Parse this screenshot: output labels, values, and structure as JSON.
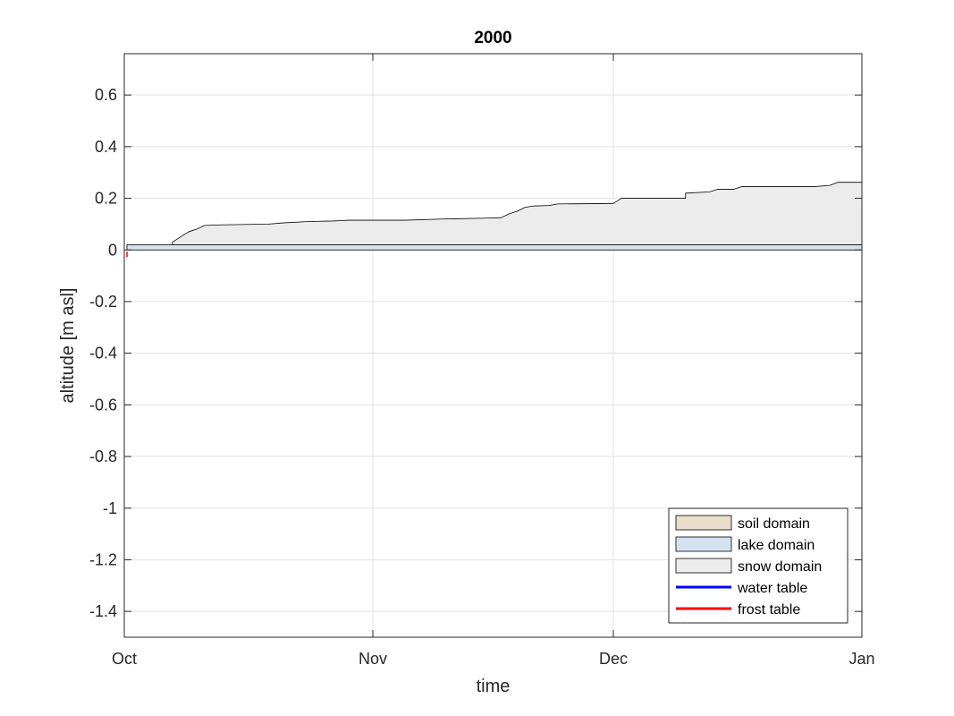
{
  "chart_data": {
    "type": "area",
    "title": "2000",
    "xlabel": "time",
    "ylabel": "altitude [m asl]",
    "x_start": "2000-10-01",
    "x_end": "2001-01-01",
    "xticks": [
      {
        "label": "Oct",
        "date": "2000-10-01"
      },
      {
        "label": "Nov",
        "date": "2000-11-01"
      },
      {
        "label": "Dec",
        "date": "2000-12-01"
      },
      {
        "label": "Jan",
        "date": "2001-01-01"
      }
    ],
    "ylim": [
      -1.5,
      0.76
    ],
    "yticks": [
      0.6,
      0.4,
      0.2,
      0,
      -0.2,
      -0.4,
      -0.6,
      -0.8,
      -1,
      -1.2,
      -1.4
    ],
    "ytick_labels": [
      "0.6",
      "0.4",
      "0.2",
      "0",
      "-0.2",
      "-0.4",
      "-0.6",
      "-0.8",
      "-1",
      "-1.2",
      "-1.4"
    ],
    "grid": true,
    "legend_position": "bottom-right",
    "lake_surface": {
      "y_bottom": 0,
      "y_top": 0.02
    },
    "snow_top": [
      {
        "x": "2000-10-07",
        "y": 0.02
      },
      {
        "x": "2000-10-07",
        "y": 0.03
      },
      {
        "x": "2000-10-08",
        "y": 0.05
      },
      {
        "x": "2000-10-09",
        "y": 0.07
      },
      {
        "x": "2000-10-10",
        "y": 0.08
      },
      {
        "x": "2000-10-11",
        "y": 0.095
      },
      {
        "x": "2000-10-13",
        "y": 0.097
      },
      {
        "x": "2000-10-19",
        "y": 0.1
      },
      {
        "x": "2000-10-21",
        "y": 0.105
      },
      {
        "x": "2000-10-24",
        "y": 0.11
      },
      {
        "x": "2000-10-27",
        "y": 0.112
      },
      {
        "x": "2000-10-29",
        "y": 0.115
      },
      {
        "x": "2000-11-05",
        "y": 0.115
      },
      {
        "x": "2000-11-10",
        "y": 0.12
      },
      {
        "x": "2000-11-15",
        "y": 0.123
      },
      {
        "x": "2000-11-17",
        "y": 0.125
      },
      {
        "x": "2000-11-18",
        "y": 0.14
      },
      {
        "x": "2000-11-19",
        "y": 0.15
      },
      {
        "x": "2000-11-20",
        "y": 0.165
      },
      {
        "x": "2000-11-21",
        "y": 0.17
      },
      {
        "x": "2000-11-23",
        "y": 0.172
      },
      {
        "x": "2000-11-24",
        "y": 0.178
      },
      {
        "x": "2000-12-01",
        "y": 0.18
      },
      {
        "x": "2000-12-02",
        "y": 0.2
      },
      {
        "x": "2000-12-10",
        "y": 0.2
      },
      {
        "x": "2000-12-10",
        "y": 0.22
      },
      {
        "x": "2000-12-13",
        "y": 0.225
      },
      {
        "x": "2000-12-14",
        "y": 0.235
      },
      {
        "x": "2000-12-16",
        "y": 0.235
      },
      {
        "x": "2000-12-17",
        "y": 0.245
      },
      {
        "x": "2000-12-26",
        "y": 0.245
      },
      {
        "x": "2000-12-28",
        "y": 0.25
      },
      {
        "x": "2000-12-29",
        "y": 0.262
      },
      {
        "x": "2001-01-01",
        "y": 0.262
      }
    ],
    "legend": [
      {
        "label": "soil domain",
        "kind": "patch",
        "color": "#e8dccb"
      },
      {
        "label": "lake domain",
        "kind": "patch",
        "color": "#d6e2ef"
      },
      {
        "label": "snow domain",
        "kind": "patch",
        "color": "#ececec"
      },
      {
        "label": "water table",
        "kind": "line",
        "color": "#0000ff"
      },
      {
        "label": "frost table",
        "kind": "line",
        "color": "#ff0000"
      }
    ]
  }
}
